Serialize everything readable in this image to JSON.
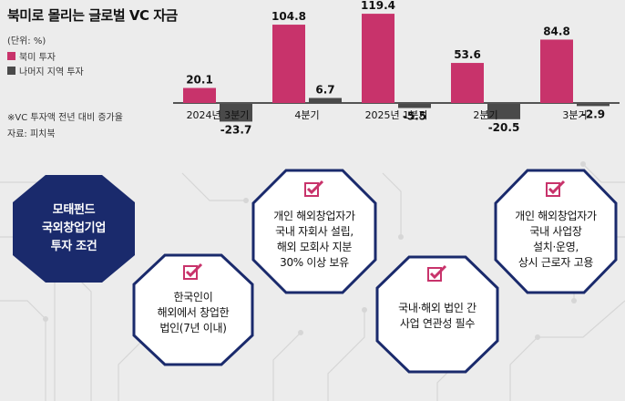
{
  "header": {
    "title": "북미로 몰리는 글로벌 VC 자금",
    "unit": "(단위: %)",
    "note": "※VC 투자액 전년 대비 증가율",
    "source": "자료: 피치북"
  },
  "legend": [
    {
      "name": "북미 투자",
      "color": "#c8336b"
    },
    {
      "name": "나머지 지역 투자",
      "color": "#4a4a4a"
    }
  ],
  "chart_data": {
    "type": "bar",
    "categories": [
      "2024년 3분기",
      "4분기",
      "2025년 1분기",
      "2분기",
      "3분기"
    ],
    "series": [
      {
        "name": "북미 투자",
        "values": [
          20.1,
          104.8,
          119.4,
          53.6,
          84.8
        ]
      },
      {
        "name": "나머지 지역 투자",
        "values": [
          -23.7,
          6.7,
          -5.5,
          -20.5,
          -2.9
        ]
      }
    ],
    "value_labels": [
      [
        "20.1",
        "104.8",
        "119.4",
        "53.6",
        "84.8"
      ],
      [
        "-23.7",
        "6.7",
        "-5.5",
        "-20.5",
        "-2.9"
      ]
    ],
    "title": "북미로 몰리는 글로벌 VC 자금",
    "xlabel": "",
    "ylabel": "",
    "ylim": [
      -30,
      125
    ],
    "grid": false,
    "legend_position": "top-left"
  },
  "conditions": {
    "title": "모태펀드\n국외창업기업\n투자 조건",
    "items": [
      {
        "text": "한국인이\n해외에서 창업한\n법인(7년 이내)",
        "check_icon": "check-icon"
      },
      {
        "text": "개인 해외창업자가\n국내 자회사 설립,\n해외 모회사 지분\n30% 이상 보유",
        "check_icon": "check-icon"
      },
      {
        "text": "국내·해외 법인 간\n사업 연관성 필수",
        "check_icon": "check-icon"
      },
      {
        "text": "개인 해외창업자가\n국내 사업장\n설치·운영,\n상시 근로자 고용",
        "check_icon": "check-icon"
      }
    ]
  }
}
